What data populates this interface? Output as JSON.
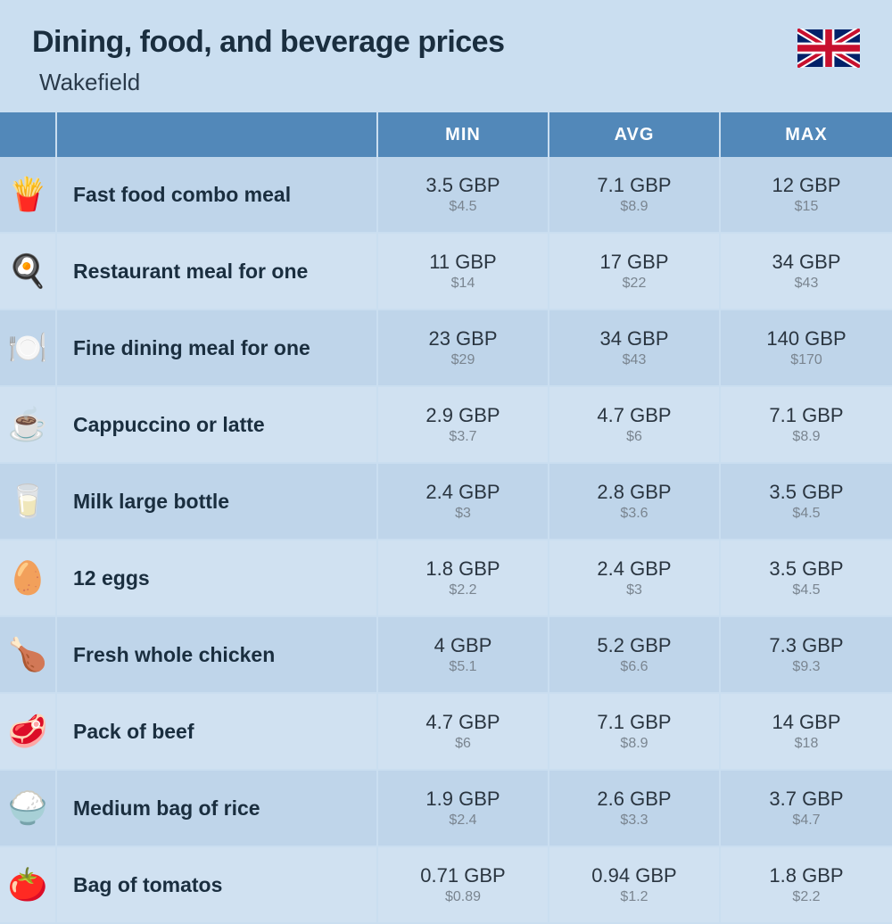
{
  "header": {
    "title": "Dining, food, and beverage prices",
    "subtitle": "Wakefield"
  },
  "table": {
    "columns": [
      "MIN",
      "AVG",
      "MAX"
    ],
    "currency_primary": "GBP",
    "currency_secondary_prefix": "$",
    "header_bg": "#5288b9",
    "header_text_color": "#ffffff",
    "row_bg_odd": "#bfd5ea",
    "row_bg_even": "#d0e1f1",
    "border_color": "#cadef0",
    "price_main_color": "#2a3540",
    "price_sub_color": "#7a8590",
    "name_color": "#1a2e3f",
    "rows": [
      {
        "icon": "🍟",
        "name": "Fast food combo meal",
        "min_gbp": "3.5",
        "min_usd": "4.5",
        "avg_gbp": "7.1",
        "avg_usd": "8.9",
        "max_gbp": "12",
        "max_usd": "15"
      },
      {
        "icon": "🍳",
        "name": "Restaurant meal for one",
        "min_gbp": "11",
        "min_usd": "14",
        "avg_gbp": "17",
        "avg_usd": "22",
        "max_gbp": "34",
        "max_usd": "43"
      },
      {
        "icon": "🍽️",
        "name": "Fine dining meal for one",
        "min_gbp": "23",
        "min_usd": "29",
        "avg_gbp": "34",
        "avg_usd": "43",
        "max_gbp": "140",
        "max_usd": "170"
      },
      {
        "icon": "☕",
        "name": "Cappuccino or latte",
        "min_gbp": "2.9",
        "min_usd": "3.7",
        "avg_gbp": "4.7",
        "avg_usd": "6",
        "max_gbp": "7.1",
        "max_usd": "8.9"
      },
      {
        "icon": "🥛",
        "name": "Milk large bottle",
        "min_gbp": "2.4",
        "min_usd": "3",
        "avg_gbp": "2.8",
        "avg_usd": "3.6",
        "max_gbp": "3.5",
        "max_usd": "4.5"
      },
      {
        "icon": "🥚",
        "name": "12 eggs",
        "min_gbp": "1.8",
        "min_usd": "2.2",
        "avg_gbp": "2.4",
        "avg_usd": "3",
        "max_gbp": "3.5",
        "max_usd": "4.5"
      },
      {
        "icon": "🍗",
        "name": "Fresh whole chicken",
        "min_gbp": "4",
        "min_usd": "5.1",
        "avg_gbp": "5.2",
        "avg_usd": "6.6",
        "max_gbp": "7.3",
        "max_usd": "9.3"
      },
      {
        "icon": "🥩",
        "name": "Pack of beef",
        "min_gbp": "4.7",
        "min_usd": "6",
        "avg_gbp": "7.1",
        "avg_usd": "8.9",
        "max_gbp": "14",
        "max_usd": "18"
      },
      {
        "icon": "🍚",
        "name": "Medium bag of rice",
        "min_gbp": "1.9",
        "min_usd": "2.4",
        "avg_gbp": "2.6",
        "avg_usd": "3.3",
        "max_gbp": "3.7",
        "max_usd": "4.7"
      },
      {
        "icon": "🍅",
        "name": "Bag of tomatos",
        "min_gbp": "0.71",
        "min_usd": "0.89",
        "avg_gbp": "0.94",
        "avg_usd": "1.2",
        "max_gbp": "1.8",
        "max_usd": "2.2"
      }
    ]
  }
}
